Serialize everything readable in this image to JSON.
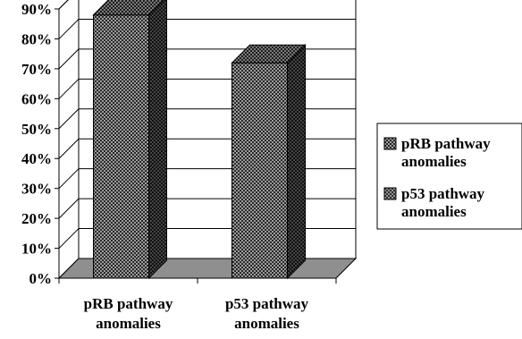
{
  "chart_data": {
    "type": "bar",
    "style": "3d",
    "categories": [
      "pRB pathway anomalies",
      "p53 pathway anomalies"
    ],
    "category_label_lines": [
      [
        "pRB pathway",
        "anomalies"
      ],
      [
        "p53 pathway",
        "anomalies"
      ]
    ],
    "values": [
      88,
      72
    ],
    "value_unit": "%",
    "ylim": [
      0,
      90
    ],
    "ytick_step": 10,
    "yticks": [
      "0%",
      "10%",
      "20%",
      "30%",
      "40%",
      "50%",
      "60%",
      "70%",
      "80%",
      "90%"
    ],
    "grid": true,
    "legend_position": "right",
    "legend": [
      {
        "lines": [
          "pRB pathway",
          "anomalies"
        ]
      },
      {
        "lines": [
          "p53 pathway",
          "anomalies"
        ]
      }
    ],
    "title": "",
    "xlabel": "",
    "ylabel": "",
    "colors": {
      "bar_front": "#8a8a8a",
      "bar_side": "#3a3a3a",
      "bar_top": "#6e6e6e",
      "floor": "#8f8f8f",
      "axis": "#000000"
    }
  }
}
